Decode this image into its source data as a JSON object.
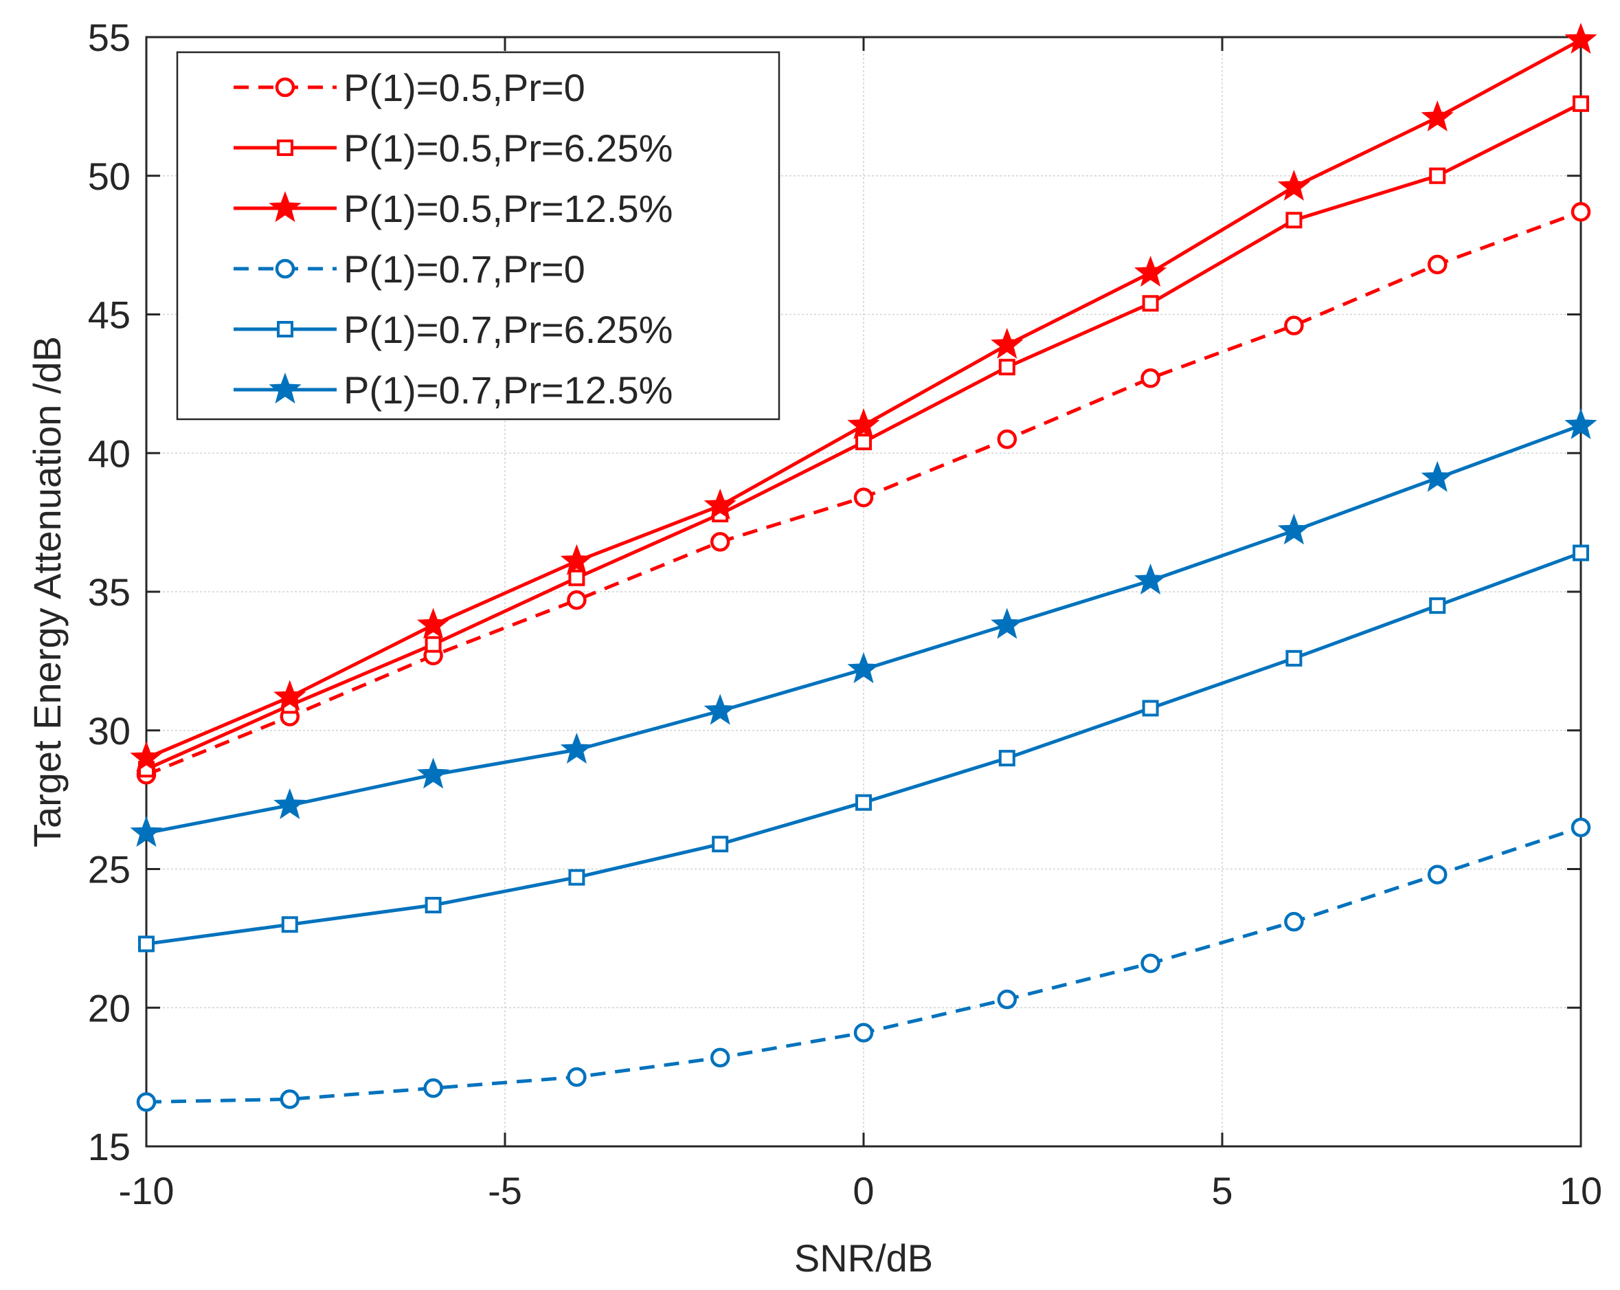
{
  "chart_data": {
    "type": "line",
    "title": "",
    "xlabel": "SNR/dB",
    "ylabel": "Target Energy Attenuation /dB",
    "xlim": [
      -10,
      10
    ],
    "ylim": [
      15,
      55
    ],
    "xticks": [
      -10,
      -5,
      0,
      5,
      10
    ],
    "yticks": [
      15,
      20,
      25,
      30,
      35,
      40,
      45,
      50,
      55
    ],
    "xtick_labels": [
      "-10",
      "-5",
      "0",
      "5",
      "10"
    ],
    "ytick_labels": [
      "15",
      "20",
      "25",
      "30",
      "35",
      "40",
      "45",
      "50",
      "55"
    ],
    "grid": true,
    "legend_position": "top-left",
    "x": [
      -10,
      -8,
      -6,
      -4,
      -2,
      0,
      2,
      4,
      6,
      8,
      10
    ],
    "series": [
      {
        "name": "P(1)=0.5,Pr=0",
        "color": "#ff0000",
        "line": "dashed",
        "marker": "circle",
        "values": [
          28.4,
          30.5,
          32.7,
          34.7,
          36.8,
          38.4,
          40.5,
          42.7,
          44.6,
          46.8,
          48.7
        ]
      },
      {
        "name": "P(1)=0.5,Pr=6.25%",
        "color": "#ff0000",
        "line": "solid",
        "marker": "square",
        "values": [
          28.6,
          30.9,
          33.1,
          35.5,
          37.8,
          40.4,
          43.1,
          45.4,
          48.4,
          50.0,
          52.6
        ]
      },
      {
        "name": "P(1)=0.5,Pr=12.5%",
        "color": "#ff0000",
        "line": "solid",
        "marker": "star",
        "values": [
          29.0,
          31.2,
          33.8,
          36.1,
          38.1,
          41.0,
          43.9,
          46.5,
          49.6,
          52.1,
          54.9
        ]
      },
      {
        "name": "P(1)=0.7,Pr=0",
        "color": "#0072bd",
        "line": "dashed",
        "marker": "circle",
        "values": [
          16.6,
          16.7,
          17.1,
          17.5,
          18.2,
          19.1,
          20.3,
          21.6,
          23.1,
          24.8,
          26.5
        ]
      },
      {
        "name": "P(1)=0.7,Pr=6.25%",
        "color": "#0072bd",
        "line": "solid",
        "marker": "square",
        "values": [
          22.3,
          23.0,
          23.7,
          24.7,
          25.9,
          27.4,
          29.0,
          30.8,
          32.6,
          34.5,
          36.4
        ]
      },
      {
        "name": "P(1)=0.7,Pr=12.5%",
        "color": "#0072bd",
        "line": "solid",
        "marker": "star",
        "values": [
          26.3,
          27.3,
          28.4,
          29.3,
          30.7,
          32.2,
          33.8,
          35.4,
          37.2,
          39.1,
          41.0
        ]
      }
    ]
  }
}
